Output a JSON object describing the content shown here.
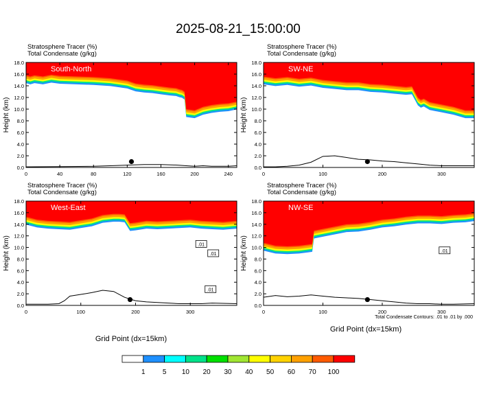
{
  "figure": {
    "title": "2025-08-21_15:00:00",
    "xlabel": "Grid Point (dx=15km)",
    "contour_note": "Total Condensate Contours: .01 to .01 by .000"
  },
  "colorbar": {
    "labels": [
      "1",
      "5",
      "10",
      "20",
      "30",
      "40",
      "50",
      "60",
      "70",
      "100"
    ],
    "colors": [
      "#ffffff",
      "#1e90ff",
      "#00ffff",
      "#00e28a",
      "#00e000",
      "#a0e632",
      "#ffff00",
      "#ffd200",
      "#ffa000",
      "#ff5a00",
      "#ff0000"
    ]
  },
  "chart_data": [
    {
      "type": "heatmap",
      "panel": "South-North",
      "header_line1": "Stratosphere Tracer   (%)",
      "header_line2": "Total Condensate   (g/kg)",
      "ylabel": "Height (km)",
      "ylim": [
        0,
        18
      ],
      "yticks": [
        "0.0",
        "2.0",
        "4.0",
        "6.0",
        "8.0",
        "10.0",
        "12.0",
        "14.0",
        "16.0",
        "18.0"
      ],
      "xlim": [
        0,
        250
      ],
      "xticks": [
        "0",
        "40",
        "80",
        "120",
        "160",
        "200",
        "240"
      ],
      "xtick_values": [
        0,
        40,
        80,
        120,
        160,
        200,
        240
      ],
      "tropopause_x": [
        0,
        5,
        10,
        20,
        30,
        40,
        60,
        80,
        100,
        120,
        130,
        140,
        150,
        160,
        170,
        178,
        182,
        185,
        188,
        190,
        200,
        210,
        220,
        230,
        240,
        250
      ],
      "tropopause_km": [
        15.8,
        15.6,
        15.8,
        15.6,
        15.9,
        15.7,
        15.6,
        15.5,
        15.3,
        14.9,
        14.4,
        14.2,
        14.1,
        13.9,
        13.7,
        13.6,
        13.4,
        13.3,
        13.0,
        10.0,
        9.8,
        10.4,
        10.7,
        10.9,
        11.0,
        11.3
      ],
      "terrain_x": [
        0,
        40,
        80,
        100,
        120,
        140,
        160,
        180,
        190,
        200,
        210,
        220,
        230,
        240,
        250
      ],
      "terrain_km": [
        0.1,
        0.15,
        0.2,
        0.3,
        0.4,
        0.5,
        0.5,
        0.4,
        0.3,
        0.2,
        0.3,
        0.2,
        0.2,
        0.2,
        0.3
      ],
      "marker_x": 125,
      "marker_km": 1.0
    },
    {
      "type": "heatmap",
      "panel": "SW-NE",
      "header_line1": "Stratosphere Tracer   (%)",
      "header_line2": "Total Condensate   (g/kg)",
      "ylabel": "Height (km)",
      "ylim": [
        0,
        18
      ],
      "yticks": [
        "0.0",
        "2.0",
        "4.0",
        "6.0",
        "8.0",
        "10.0",
        "12.0",
        "14.0",
        "16.0",
        "18.0"
      ],
      "xlim": [
        0,
        355
      ],
      "xticks": [
        "0",
        "100",
        "200",
        "300"
      ],
      "xtick_values": [
        0,
        100,
        200,
        300
      ],
      "tropopause_x": [
        0,
        20,
        40,
        60,
        80,
        100,
        120,
        140,
        160,
        180,
        200,
        220,
        240,
        250,
        260,
        265,
        270,
        280,
        300,
        320,
        340,
        355
      ],
      "tropopause_km": [
        15.6,
        15.3,
        15.5,
        15.2,
        15.4,
        15.0,
        14.8,
        14.6,
        14.6,
        14.3,
        14.2,
        14.0,
        13.8,
        13.9,
        12.0,
        11.6,
        11.8,
        11.2,
        10.8,
        10.4,
        9.8,
        9.8
      ],
      "terrain_x": [
        0,
        20,
        40,
        60,
        80,
        100,
        120,
        140,
        160,
        180,
        200,
        220,
        240,
        260,
        280,
        300,
        320,
        355
      ],
      "terrain_km": [
        0.1,
        0.1,
        0.2,
        0.4,
        0.9,
        1.9,
        2.0,
        1.7,
        1.4,
        1.3,
        1.1,
        1.0,
        0.8,
        0.6,
        0.4,
        0.3,
        0.3,
        0.3
      ],
      "marker_x": 175,
      "marker_km": 1.0
    },
    {
      "type": "heatmap",
      "panel": "West-East",
      "header_line1": "Stratosphere Tracer   (%)",
      "header_line2": "Total Condensate   (g/kg)",
      "ylabel": "Height (km)",
      "ylim": [
        0,
        18
      ],
      "yticks": [
        "0.0",
        "2.0",
        "4.0",
        "6.0",
        "8.0",
        "10.0",
        "12.0",
        "14.0",
        "16.0",
        "18.0"
      ],
      "xlim": [
        0,
        385
      ],
      "xticks": [
        "0",
        "100",
        "200",
        "300"
      ],
      "xtick_values": [
        0,
        100,
        200,
        300
      ],
      "tropopause_x": [
        0,
        20,
        40,
        60,
        80,
        100,
        120,
        140,
        160,
        170,
        180,
        190,
        200,
        220,
        240,
        260,
        280,
        300,
        320,
        340,
        360,
        385
      ],
      "tropopause_km": [
        15.3,
        14.8,
        14.6,
        14.5,
        14.4,
        14.7,
        15.0,
        15.6,
        15.8,
        15.8,
        15.7,
        14.2,
        14.3,
        14.6,
        14.5,
        14.6,
        14.7,
        14.8,
        14.6,
        14.5,
        14.4,
        14.6
      ],
      "terrain_x": [
        0,
        40,
        60,
        70,
        80,
        100,
        120,
        140,
        160,
        180,
        200,
        220,
        240,
        260,
        280,
        300,
        320,
        340,
        385
      ],
      "terrain_km": [
        0.2,
        0.2,
        0.3,
        0.8,
        1.6,
        1.9,
        2.2,
        2.6,
        2.4,
        1.4,
        0.8,
        0.6,
        0.5,
        0.4,
        0.3,
        0.3,
        0.3,
        0.4,
        0.3
      ],
      "marker_x": 190,
      "marker_km": 1.0,
      "contour_labels": [
        {
          "x": 320,
          "km": 10.6,
          "text": ".01"
        },
        {
          "x": 342,
          "km": 9.0,
          "text": ".01"
        },
        {
          "x": 337,
          "km": 2.8,
          "text": ".01"
        }
      ]
    },
    {
      "type": "heatmap",
      "panel": "NW-SE",
      "header_line1": "Stratosphere Tracer   (%)",
      "header_line2": "Total Condensate   (g/kg)",
      "ylabel": "Height (km)",
      "ylim": [
        0,
        18
      ],
      "yticks": [
        "0.0",
        "2.0",
        "4.0",
        "6.0",
        "8.0",
        "10.0",
        "12.0",
        "14.0",
        "16.0",
        "18.0"
      ],
      "xlim": [
        0,
        355
      ],
      "xticks": [
        "0",
        "100",
        "200",
        "300"
      ],
      "xtick_values": [
        0,
        100,
        200,
        300
      ],
      "tropopause_x": [
        0,
        20,
        40,
        60,
        75,
        82,
        85,
        100,
        120,
        140,
        160,
        180,
        200,
        220,
        240,
        260,
        280,
        300,
        320,
        340,
        355
      ],
      "tropopause_km": [
        10.8,
        10.3,
        10.2,
        10.3,
        10.5,
        10.6,
        12.9,
        13.2,
        13.6,
        14.0,
        14.1,
        14.4,
        14.8,
        15.0,
        15.3,
        15.5,
        15.5,
        15.4,
        15.6,
        15.7,
        15.9
      ],
      "terrain_x": [
        0,
        20,
        40,
        60,
        80,
        100,
        120,
        140,
        160,
        180,
        200,
        220,
        240,
        260,
        280,
        300,
        320,
        355
      ],
      "terrain_km": [
        1.4,
        1.7,
        1.5,
        1.6,
        1.8,
        1.6,
        1.4,
        1.3,
        1.2,
        1.0,
        0.8,
        0.6,
        0.4,
        0.3,
        0.3,
        0.2,
        0.2,
        0.3
      ],
      "marker_x": 175,
      "marker_km": 1.0,
      "contour_labels": [
        {
          "x": 305,
          "km": 9.5,
          "text": ".01"
        }
      ]
    }
  ]
}
